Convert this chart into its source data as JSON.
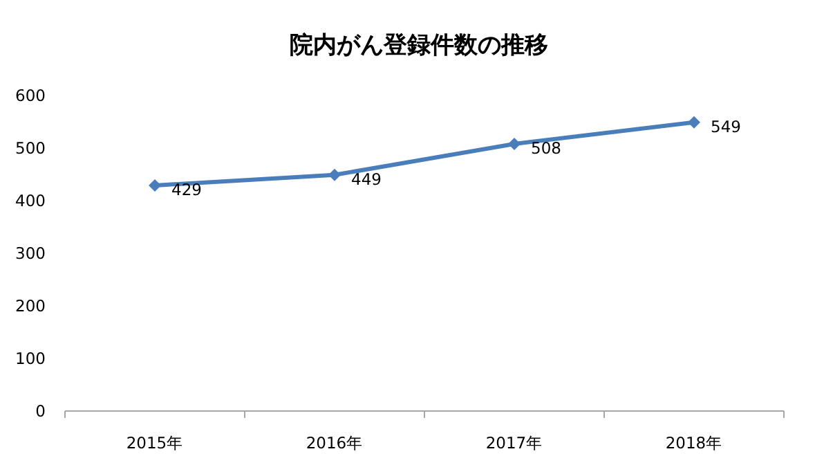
{
  "chart_data": {
    "type": "line",
    "title": "院内がん登録件数の推移",
    "categories": [
      "2015年",
      "2016年",
      "2017年",
      "2018年"
    ],
    "series": [
      {
        "color": "#4a7ebb",
        "values": [
          429,
          449,
          508,
          549
        ]
      }
    ],
    "ylim": [
      0,
      600
    ],
    "yticks": [
      0,
      100,
      200,
      300,
      400,
      500,
      600
    ],
    "data_labels": true,
    "marker": "diamond",
    "line_style": "solid"
  }
}
